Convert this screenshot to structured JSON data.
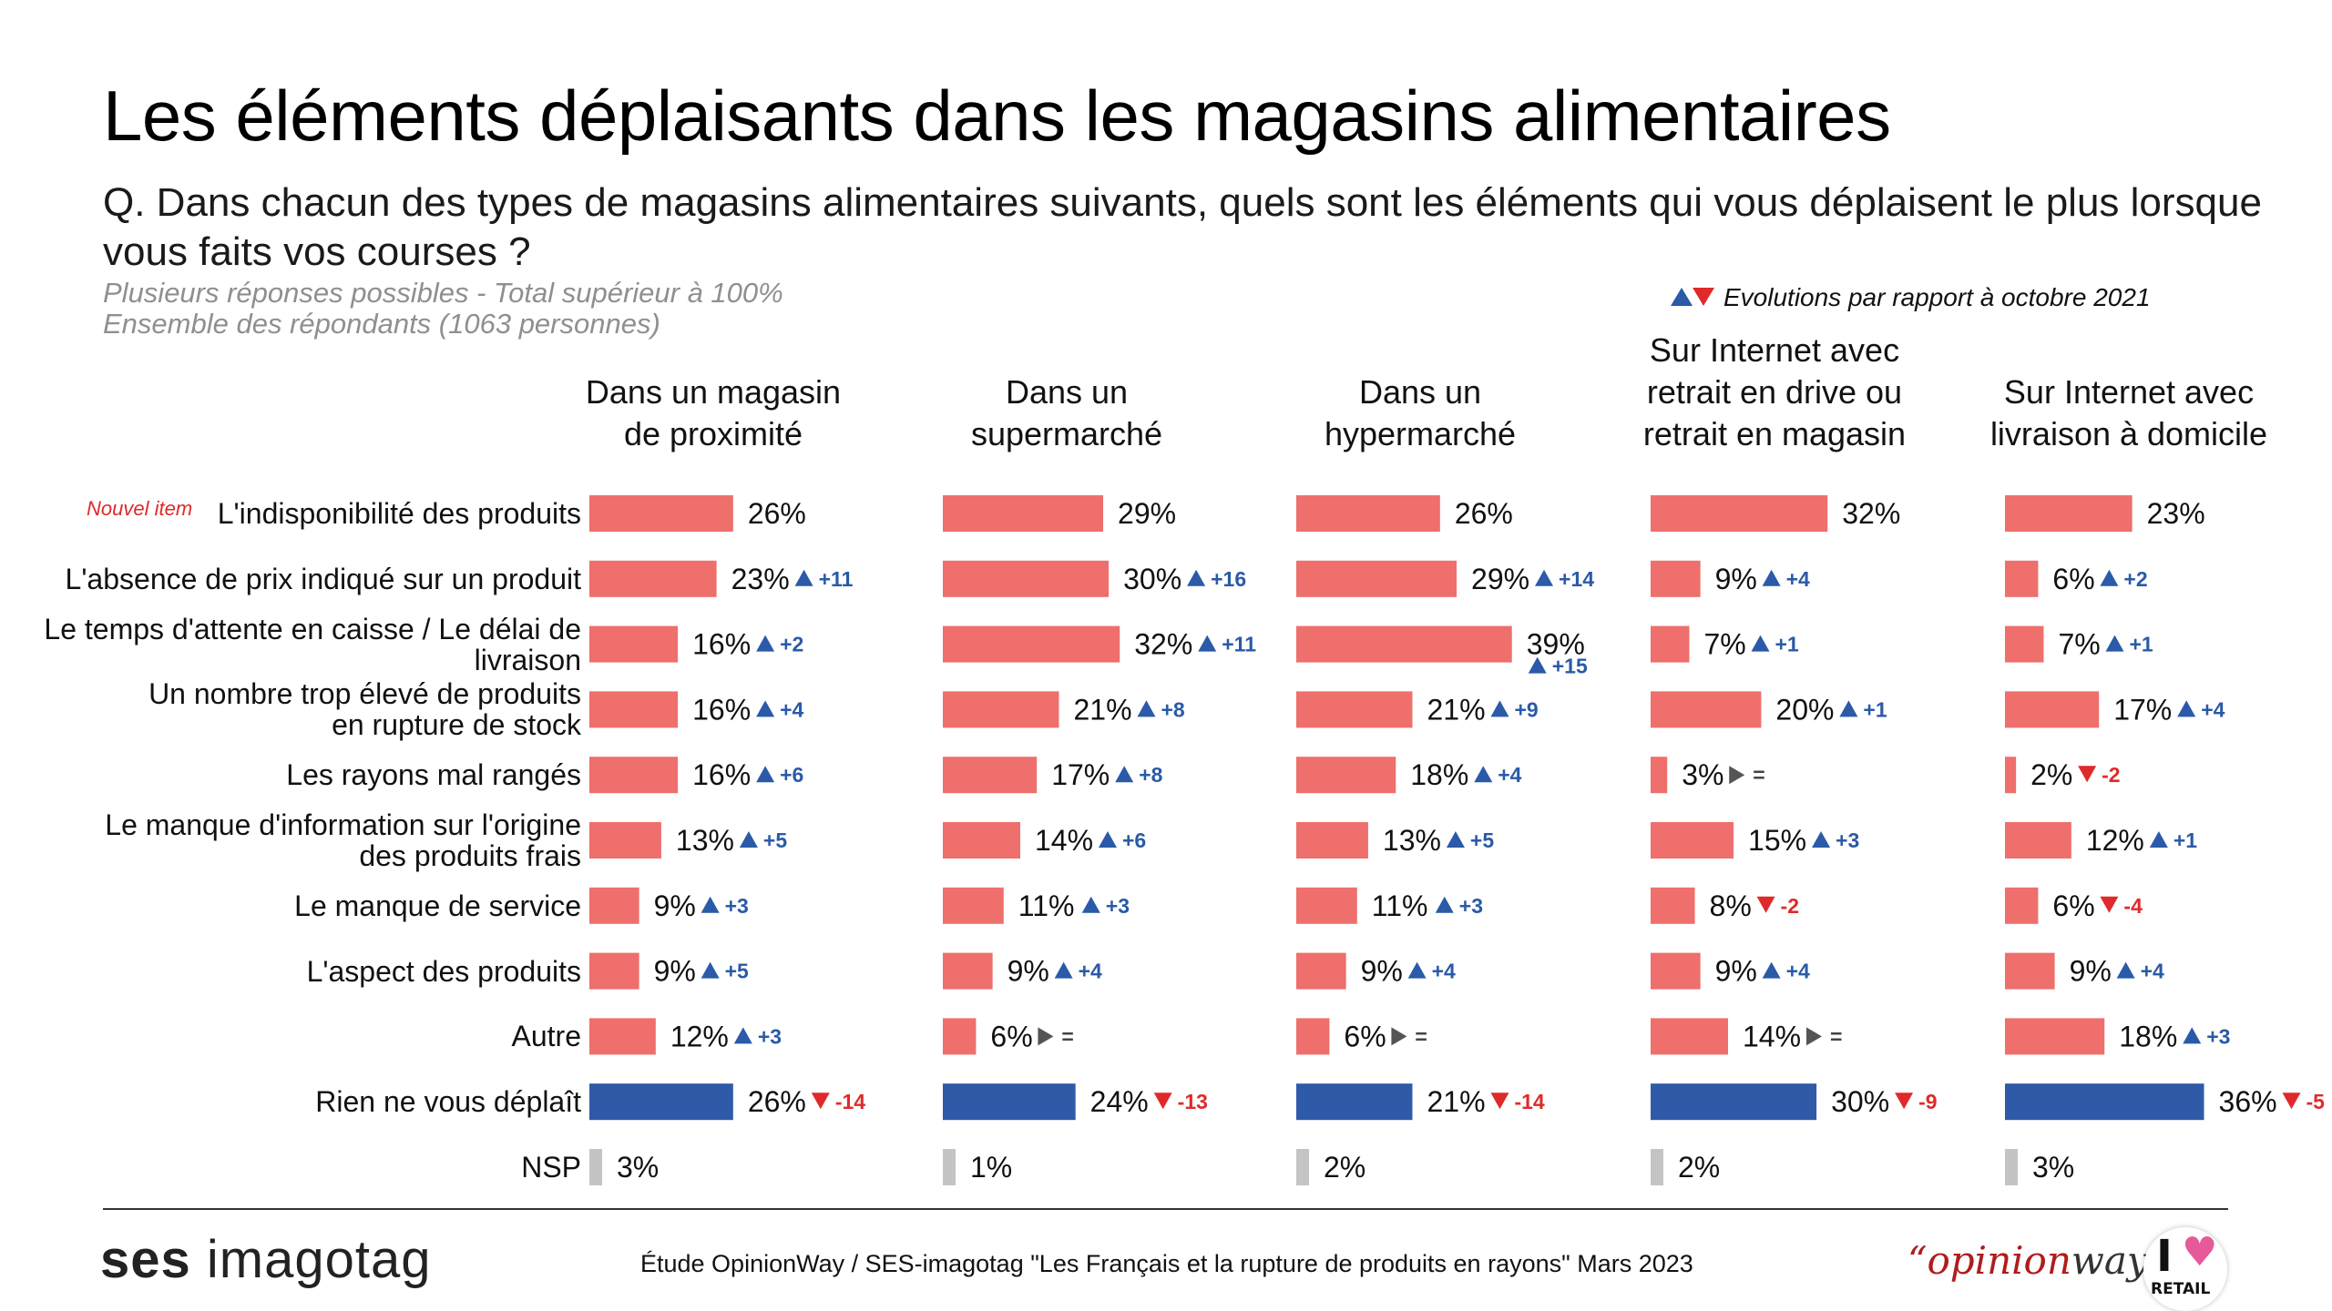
{
  "title": "Les éléments déplaisants dans les magasins alimentaires",
  "question": "Q. Dans chacun des types de magasins alimentaires suivants, quels sont les éléments qui vous déplaisent le plus lorsque vous faits vos courses ?",
  "note1": "Plusieurs réponses possibles - Total supérieur à 100%",
  "note2": "Ensemble des répondants (1063 personnes)",
  "evolution_legend": "Evolutions par rapport à octobre 2021",
  "new_item_label": "Nouvel item",
  "source": "Étude OpinionWay / SES-imagotag \"Les Français et la rupture de produits en rayons\" Mars 2023",
  "logos": {
    "ses_bold": "ses",
    "ses_rest": "imagotag",
    "opinionway_a": "“opinion",
    "opinionway_b": "way",
    "ilr_i": "I",
    "ilr_heart": "♥",
    "ilr_text": "RETAIL"
  },
  "colors": {
    "bar_main": "#ee6f6c",
    "bar_rien": "#2f5aa8",
    "bar_nsp": "#c4c4c4",
    "up": "#2a5aa8",
    "down": "#e02a2a",
    "equal": "#444444"
  },
  "chart_data": {
    "type": "bar",
    "orientation": "horizontal",
    "categories": [
      "L'indisponibilité des produits",
      "L'absence de prix indiqué sur un produit",
      "Le temps d'attente en caisse / Le délai de livraison",
      "Un nombre trop élevé de produits en rupture de stock",
      "Les rayons mal rangés",
      "Le manque d'information sur l'origine des produits frais",
      "Le manque de service",
      "L'aspect des produits",
      "Autre",
      "Rien ne vous déplaît",
      "NSP"
    ],
    "series": [
      {
        "name": "Dans un magasin de proximité",
        "values": [
          26,
          23,
          16,
          16,
          16,
          13,
          9,
          9,
          12,
          26,
          3
        ],
        "evolutions": [
          null,
          "+11",
          "+2",
          "+4",
          "+6",
          "+5",
          "+3",
          "+5",
          "+3",
          "-14",
          null
        ]
      },
      {
        "name": "Dans un supermarché",
        "values": [
          29,
          30,
          32,
          21,
          17,
          14,
          11,
          9,
          6,
          24,
          1
        ],
        "evolutions": [
          null,
          "+16",
          "+11",
          "+8",
          "+8",
          "+6",
          "+3",
          "+4",
          "=",
          "-13",
          null
        ]
      },
      {
        "name": "Dans un hypermarché",
        "values": [
          26,
          29,
          39,
          21,
          18,
          13,
          11,
          9,
          6,
          21,
          2
        ],
        "evolutions": [
          null,
          "+14",
          "+15",
          "+9",
          "+4",
          "+5",
          "+3",
          "+4",
          "=",
          "-14",
          null
        ]
      },
      {
        "name": "Sur Internet avec retrait en drive ou retrait en magasin",
        "values": [
          32,
          9,
          7,
          20,
          3,
          15,
          8,
          9,
          14,
          30,
          2
        ],
        "evolutions": [
          null,
          "+4",
          "+1",
          "+1",
          "=",
          "+3",
          "-2",
          "+4",
          "=",
          "-9",
          null
        ]
      },
      {
        "name": "Sur Internet avec livraison à domicile",
        "values": [
          23,
          6,
          7,
          17,
          2,
          12,
          6,
          9,
          18,
          36,
          3
        ],
        "evolutions": [
          null,
          "+2",
          "+1",
          "+4",
          "-2",
          "+1",
          "-4",
          "+4",
          "+3",
          "-5",
          null
        ]
      }
    ],
    "headers": [
      [
        "Dans un magasin",
        "de proximité"
      ],
      [
        "Dans un",
        "supermarché"
      ],
      [
        "Dans un",
        "hypermarché"
      ],
      [
        "Sur Internet avec",
        "retrait en drive ou",
        "retrait en magasin"
      ],
      [
        "Sur Internet avec",
        "livraison à domicile"
      ]
    ],
    "labels": [
      [
        "L'indisponibilité des produits"
      ],
      [
        "L'absence de prix indiqué sur un produit"
      ],
      [
        "Le temps d'attente en caisse / Le délai de",
        "livraison"
      ],
      [
        "Un nombre trop élevé de produits",
        "en rupture de stock"
      ],
      [
        "Les rayons mal rangés"
      ],
      [
        "Le manque d'information sur l'origine",
        "des produits frais"
      ],
      [
        "Le manque de service"
      ],
      [
        "L'aspect des produits"
      ],
      [
        "Autre"
      ],
      [
        "Rien ne vous déplaît"
      ],
      [
        "NSP"
      ]
    ],
    "value_suffix": "%",
    "legend": "top-right"
  }
}
